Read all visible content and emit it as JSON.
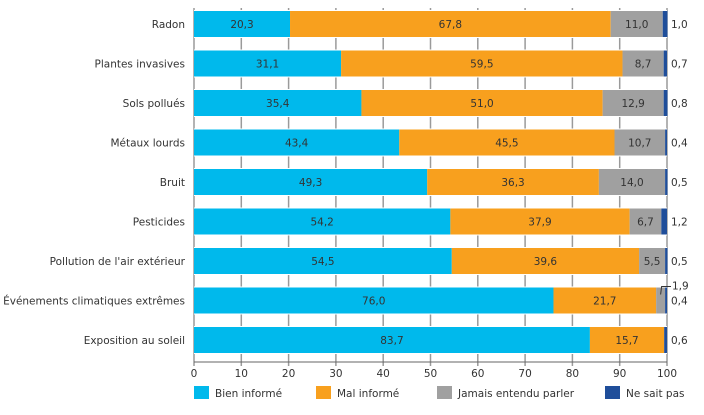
{
  "chart_data": {
    "type": "bar",
    "orientation": "horizontal",
    "stacked": true,
    "categories": [
      "Radon",
      "Plantes invasives",
      "Sols pollués",
      "Métaux lourds",
      "Bruit",
      "Pesticides",
      "Pollution de l'air extérieur",
      "Événements climatiques extrêmes",
      "Exposition au soleil"
    ],
    "series": [
      {
        "name": "Bien informé",
        "color": "#00b9ec",
        "values": [
          20.3,
          31.1,
          35.4,
          43.4,
          49.3,
          54.2,
          54.5,
          76.0,
          83.7
        ]
      },
      {
        "name": "Mal informé",
        "color": "#f8a01e",
        "values": [
          67.8,
          59.5,
          51.0,
          45.5,
          36.3,
          37.9,
          39.6,
          21.7,
          15.7
        ]
      },
      {
        "name": "Jamais entendu parler",
        "color": "#a0a0a0",
        "values": [
          11.0,
          8.7,
          12.9,
          10.7,
          14.0,
          6.7,
          5.5,
          1.9,
          0
        ]
      },
      {
        "name": "Ne sait pas",
        "color": "#1f4e9a",
        "values": [
          1.0,
          0.7,
          0.8,
          0.4,
          0.5,
          1.2,
          0.5,
          0.4,
          0.6
        ]
      }
    ],
    "data_labels": [
      [
        "20,3",
        "31,1",
        "35,4",
        "43,4",
        "49,3",
        "54,2",
        "54,5",
        "76,0",
        "83,7"
      ],
      [
        "67,8",
        "59,5",
        "51,0",
        "45,5",
        "36,3",
        "37,9",
        "39,6",
        "21,7",
        "15,7"
      ],
      [
        "11,0",
        "8,7",
        "12,9",
        "10,7",
        "14,0",
        "6,7",
        "5,5",
        "1,9",
        ""
      ],
      [
        "1,0",
        "0,7",
        "0,8",
        "0,4",
        "0,5",
        "1,2",
        "0,5",
        "0,4",
        "0,6"
      ]
    ],
    "xlim": [
      0,
      100
    ],
    "xticks": [
      "0",
      "10",
      "20",
      "30",
      "40",
      "50",
      "60",
      "70",
      "80",
      "90",
      "100"
    ],
    "grid": true,
    "legend_placement": "bottom"
  }
}
